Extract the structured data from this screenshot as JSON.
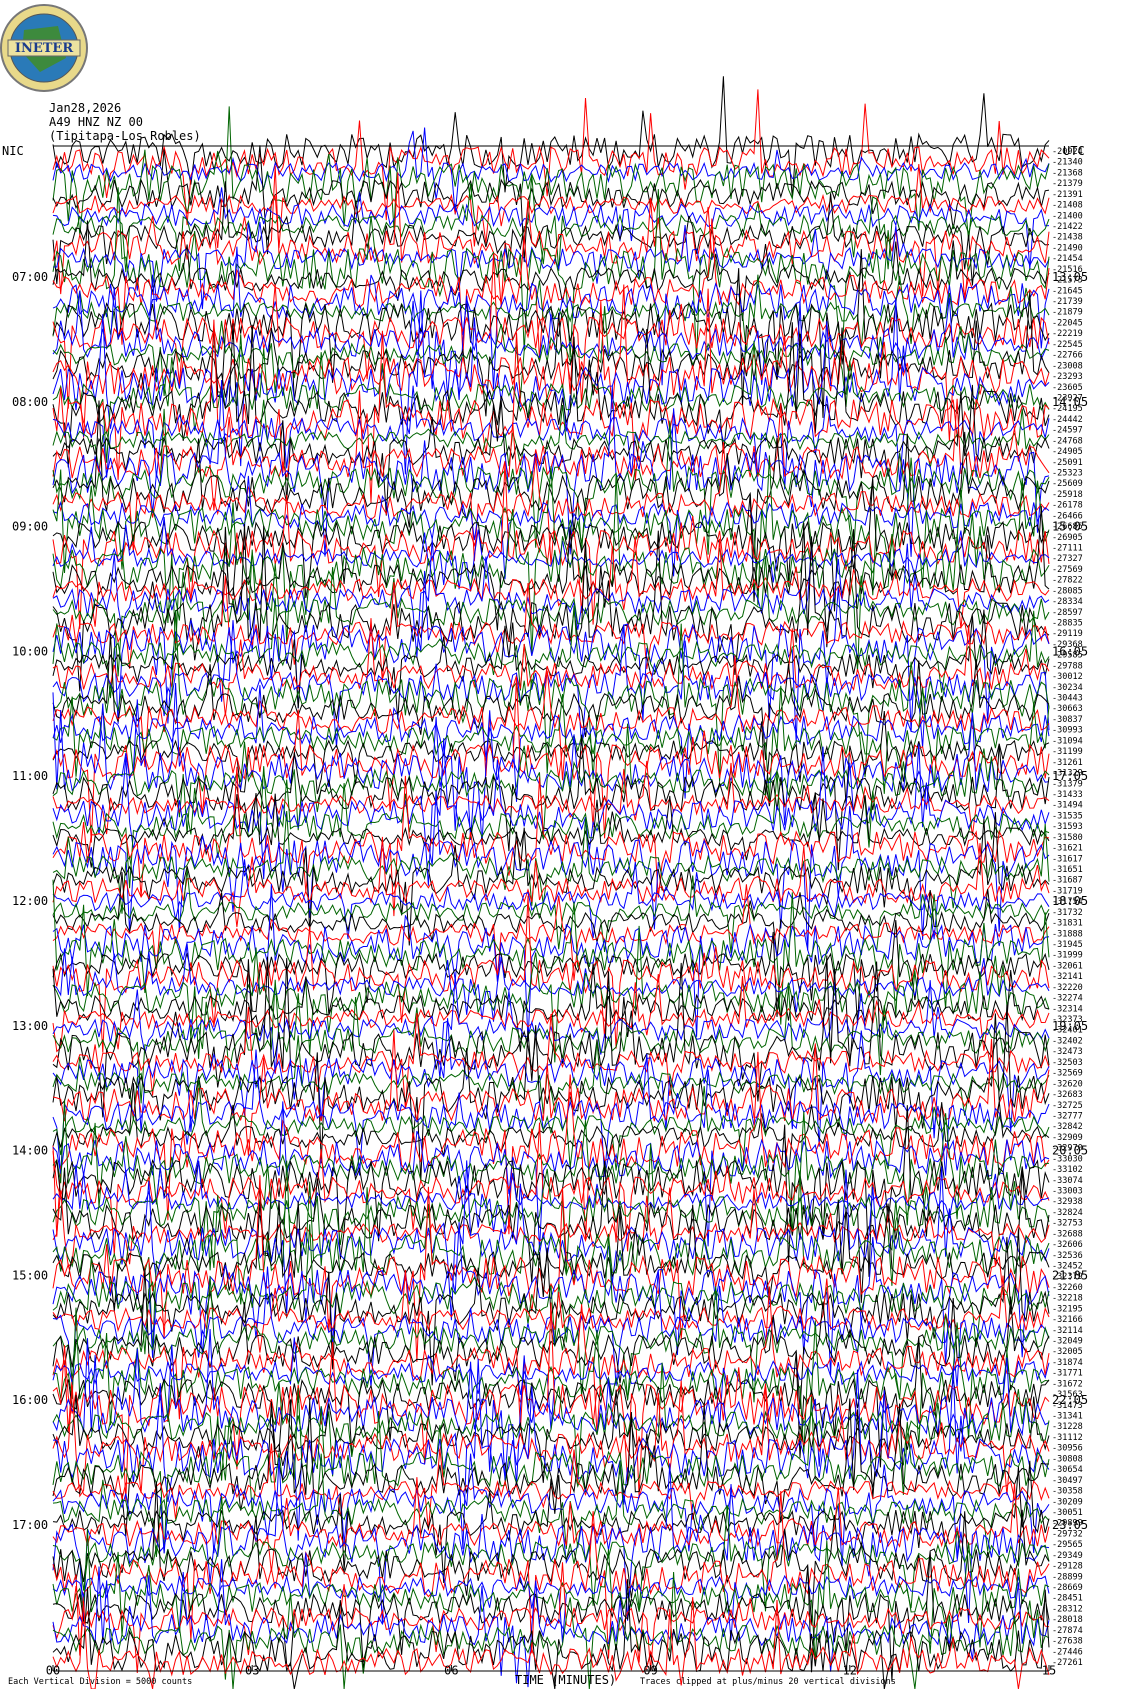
{
  "header": {
    "logo": "INETER",
    "date": "Jan28,2026",
    "channel": "A49 HNZ NZ 00",
    "location": "(Tipitapa-Los Robles)"
  },
  "left": {
    "label": "NIC",
    "times": [
      "07:00",
      "08:00",
      "09:00",
      "10:00",
      "11:00",
      "12:00",
      "13:00",
      "14:00",
      "15:00",
      "16:00",
      "17:00"
    ]
  },
  "right": {
    "label": "UTC",
    "times": [
      "13:05",
      "14:05",
      "15:05",
      "16:05",
      "17:05",
      "18:05",
      "19:05",
      "20:05",
      "21:05",
      "22:05",
      "23:05"
    ],
    "counts": [
      "-20924",
      "-21340",
      "-21368",
      "-21379",
      "-21391",
      "-21408",
      "-21400",
      "-21422",
      "-21438",
      "-21490",
      "-21454",
      "-21516",
      "-21573",
      "-21645",
      "-21739",
      "-21879",
      "-22045",
      "-22219",
      "-22545",
      "-22766",
      "-23008",
      "-23293",
      "-23605",
      "-23927",
      "-24195",
      "-24442",
      "-24597",
      "-24768",
      "-24905",
      "-25091",
      "-25323",
      "-25609",
      "-25918",
      "-26178",
      "-26466",
      "-26685",
      "-26905",
      "-27111",
      "-27327",
      "-27569",
      "-27822",
      "-28085",
      "-28334",
      "-28597",
      "-28835",
      "-29119",
      "-29368",
      "-29585",
      "-29788",
      "-30012",
      "-30234",
      "-30443",
      "-30663",
      "-30837",
      "-30993",
      "-31094",
      "-31199",
      "-31261",
      "-31329",
      "-31379",
      "-31433",
      "-31494",
      "-31535",
      "-31593",
      "-31580",
      "-31621",
      "-31617",
      "-31651",
      "-31687",
      "-31719",
      "-31754",
      "-31732",
      "-31831",
      "-31888",
      "-31945",
      "-31999",
      "-32061",
      "-32141",
      "-32220",
      "-32274",
      "-32314",
      "-32373",
      "-32401",
      "-32402",
      "-32473",
      "-32503",
      "-32569",
      "-32620",
      "-32683",
      "-32725",
      "-32777",
      "-32842",
      "-32909",
      "-32970",
      "-33030",
      "-33102",
      "-33074",
      "-33003",
      "-32938",
      "-32824",
      "-32753",
      "-32688",
      "-32606",
      "-32536",
      "-32452",
      "-32379",
      "-32260",
      "-32218",
      "-32195",
      "-32166",
      "-32114",
      "-32049",
      "-32005",
      "-31874",
      "-31771",
      "-31672",
      "-31563",
      "-31473",
      "-31341",
      "-31228",
      "-31112",
      "-30956",
      "-30808",
      "-30654",
      "-30497",
      "-30358",
      "-30209",
      "-30051",
      "-29899",
      "-29732",
      "-29565",
      "-29349",
      "-29128",
      "-28899",
      "-28669",
      "-28451",
      "-28312",
      "-28018",
      "-27874",
      "-27638",
      "-27446",
      "-27261"
    ]
  },
  "x_axis": {
    "ticks": [
      "00",
      "03",
      "06",
      "09",
      "12",
      "15"
    ],
    "title": "TIME (MINUTES)"
  },
  "footer": {
    "note_left": "Each Vertical Division = 5000 counts",
    "note_right": "Traces clipped at plus/minus 20 vertical divisions"
  }
}
